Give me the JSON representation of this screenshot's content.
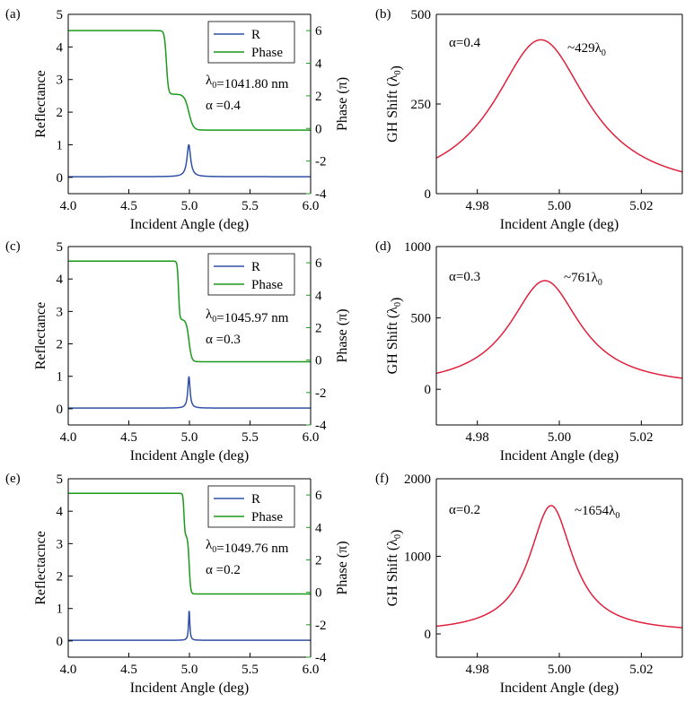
{
  "colors": {
    "reflectance": "#3050a8",
    "phase": "#1a9a1a",
    "gh": "#e0203c",
    "axis_right": "#1a9a1a"
  },
  "chart_data": [
    {
      "type": "line",
      "id": "a",
      "panel_label": "(a)",
      "xlabel": "Incident Angle (deg)",
      "ylabel": "Reflectance",
      "y2label": "Phase (π)",
      "xlim": [
        4.0,
        6.0
      ],
      "ylim": [
        -0.5,
        5.0
      ],
      "y2lim": [
        -4,
        7
      ],
      "xticks": [
        4.0,
        4.5,
        5.0,
        5.5,
        6.0
      ],
      "xtick_labels": [
        "4.0",
        "4.5",
        "5.0",
        "5.5",
        "6.0"
      ],
      "yticks": [
        0,
        1,
        2,
        3,
        4,
        5
      ],
      "ytick_labels": [
        "0",
        "1",
        "2",
        "3",
        "4",
        "5"
      ],
      "y2ticks": [
        -4,
        -2,
        0,
        2,
        4,
        6
      ],
      "y2tick_labels": [
        "-4",
        "-2",
        "0",
        "2",
        "4",
        "6"
      ],
      "legend": [
        "R",
        "Phase"
      ],
      "annotations": [
        "λ0=1041.80 nm",
        "α =0.4"
      ],
      "series": [
        {
          "name": "R",
          "axis": "left",
          "shape": "lorentz",
          "center": 4.995,
          "width": 0.018,
          "baseline": 0.02,
          "peak": 1.0
        },
        {
          "name": "Phase",
          "axis": "right",
          "shape": "double-step",
          "high": 6.0,
          "low": -0.1,
          "step1": 4.81,
          "step1_width": 0.008,
          "step1_level": 2.1,
          "step2": 4.995,
          "step2_width": 0.018
        }
      ]
    },
    {
      "type": "line",
      "id": "b",
      "panel_label": "(b)",
      "xlabel": "Incident Angle (deg)",
      "ylabel": "GH Shift (λ0)",
      "xlim": [
        4.97,
        5.03
      ],
      "ylim": [
        0,
        500
      ],
      "xticks": [
        4.98,
        5.0,
        5.02
      ],
      "xtick_labels": [
        "4.98",
        "5.00",
        "5.02"
      ],
      "yticks": [
        0,
        250,
        500
      ],
      "ytick_labels": [
        "0",
        "250",
        "500"
      ],
      "annotations": [
        "α=0.4",
        "~429λ0"
      ],
      "series": [
        {
          "name": "GH",
          "shape": "lorentz",
          "center": 4.9955,
          "width": 0.014,
          "peak": 429,
          "baseline": 0
        }
      ]
    },
    {
      "type": "line",
      "id": "c",
      "panel_label": "(c)",
      "xlabel": "Incident Angle (deg)",
      "ylabel": "Reflectance",
      "y2label": "Phase (π)",
      "xlim": [
        4.0,
        6.0
      ],
      "ylim": [
        -0.5,
        5.0
      ],
      "y2lim": [
        -4,
        7
      ],
      "xticks": [
        4.0,
        4.5,
        5.0,
        5.5,
        6.0
      ],
      "xtick_labels": [
        "4.0",
        "4.5",
        "5.0",
        "5.5",
        "6.0"
      ],
      "yticks": [
        0,
        1,
        2,
        3,
        4,
        5
      ],
      "ytick_labels": [
        "0",
        "1",
        "2",
        "3",
        "4",
        "5"
      ],
      "y2ticks": [
        -4,
        -2,
        0,
        2,
        4,
        6
      ],
      "y2tick_labels": [
        "-4",
        "-2",
        "0",
        "2",
        "4",
        "6"
      ],
      "legend": [
        "R",
        "Phase"
      ],
      "annotations": [
        "λ0=1045.97 nm",
        "α =0.3"
      ],
      "series": [
        {
          "name": "R",
          "axis": "left",
          "shape": "lorentz",
          "center": 4.996,
          "width": 0.011,
          "baseline": 0.02,
          "peak": 1.0
        },
        {
          "name": "Phase",
          "axis": "right",
          "shape": "double-step",
          "high": 6.1,
          "low": -0.1,
          "step1": 4.91,
          "step1_width": 0.005,
          "step1_level": 2.5,
          "step2": 4.996,
          "step2_width": 0.011
        }
      ]
    },
    {
      "type": "line",
      "id": "d",
      "panel_label": "(d)",
      "xlabel": "Incident Angle (deg)",
      "ylabel": "GH Shift (λ0)",
      "xlim": [
        4.97,
        5.03
      ],
      "ylim": [
        -250,
        1000
      ],
      "xticks": [
        4.98,
        5.0,
        5.02
      ],
      "xtick_labels": [
        "4.98",
        "5.00",
        "5.02"
      ],
      "yticks": [
        0,
        500,
        1000
      ],
      "ytick_labels": [
        "0",
        "500",
        "1000"
      ],
      "annotations": [
        "α=0.3",
        "~761λ0"
      ],
      "series": [
        {
          "name": "GH",
          "shape": "lorentz",
          "center": 4.9965,
          "width": 0.0105,
          "peak": 761,
          "baseline": 10
        }
      ]
    },
    {
      "type": "line",
      "id": "e",
      "panel_label": "(e)",
      "xlabel": "Incident Angle (deg)",
      "ylabel": "Reflectacnce",
      "y2label": "Phase (π)",
      "xlim": [
        4.0,
        6.0
      ],
      "ylim": [
        -0.5,
        5.0
      ],
      "y2lim": [
        -4,
        7
      ],
      "xticks": [
        4.0,
        4.5,
        5.0,
        5.5,
        6.0
      ],
      "xtick_labels": [
        "4.0",
        "4.5",
        "5.0",
        "5.5",
        "6.0"
      ],
      "yticks": [
        0,
        1,
        2,
        3,
        4,
        5
      ],
      "ytick_labels": [
        "0",
        "1",
        "2",
        "3",
        "4",
        "5"
      ],
      "y2ticks": [
        -4,
        -2,
        0,
        2,
        4,
        6
      ],
      "y2tick_labels": [
        "-4",
        "-2",
        "0",
        "2",
        "4",
        "6"
      ],
      "legend": [
        "R",
        "Phase"
      ],
      "annotations": [
        "λ0=1049.76 nm",
        "α =0.2"
      ],
      "series": [
        {
          "name": "R",
          "axis": "left",
          "shape": "lorentz",
          "center": 4.998,
          "width": 0.006,
          "baseline": 0.02,
          "peak": 0.97
        },
        {
          "name": "Phase",
          "axis": "right",
          "shape": "double-step",
          "high": 6.1,
          "low": -0.1,
          "step1": 4.955,
          "step1_width": 0.004,
          "step1_level": 3.5,
          "step2": 4.998,
          "step2_width": 0.006
        }
      ]
    },
    {
      "type": "line",
      "id": "f",
      "panel_label": "(f)",
      "xlabel": "Incident Angle (deg)",
      "ylabel": "GH Shift (λ0)",
      "xlim": [
        4.97,
        5.03
      ],
      "ylim": [
        -300,
        2000
      ],
      "xticks": [
        4.98,
        5.0,
        5.02
      ],
      "xtick_labels": [
        "4.98",
        "5.00",
        "5.02"
      ],
      "yticks": [
        0,
        1000,
        2000
      ],
      "ytick_labels": [
        "0",
        "1000",
        "2000"
      ],
      "annotations": [
        "α=0.2",
        "~1654λ0"
      ],
      "series": [
        {
          "name": "GH",
          "shape": "lorentz",
          "center": 4.998,
          "width": 0.0065,
          "peak": 1654,
          "baseline": 15
        }
      ]
    }
  ]
}
